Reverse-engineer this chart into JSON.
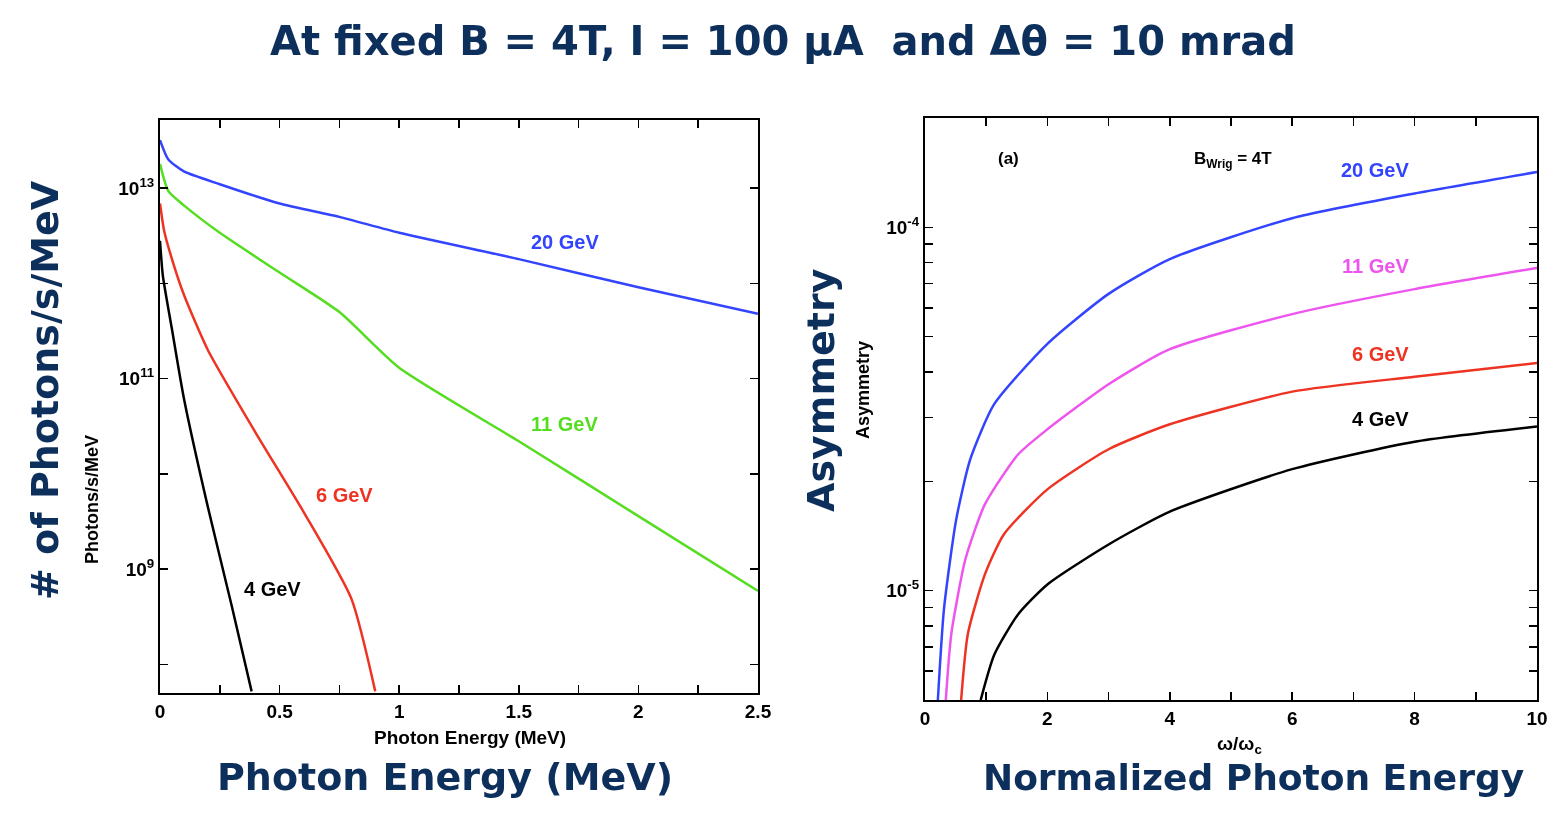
{
  "chart_data": [
    {
      "type": "line",
      "title": "At fixed B = 4T, I = 100 μA  and Δθ = 10 mrad",
      "xlabel": "Photon Energy (MeV)",
      "ylabel": "Photons/s/MeV",
      "log": "y",
      "annotations": [
        "# of Photons/s/MeV",
        "Photon Energy (MeV)"
      ],
      "xlim": [
        0,
        2.5
      ],
      "xticks": [
        0,
        {
          "value": 0.25,
          "label": null
        },
        0.5,
        {
          "value": 0.75,
          "label": null
        },
        1,
        {
          "value": 1.25,
          "label": null
        },
        1.5,
        {
          "value": 1.75,
          "label": null
        },
        2,
        {
          "value": 2.25,
          "label": null
        },
        2.5
      ],
      "ylim": [
        50000000.0,
        52000000000000.0
      ],
      "yticks": [
        {
          "value": 100000000.0,
          "label": null
        },
        {
          "value": 1000000000.0,
          "label": "10$^{9}$"
        },
        {
          "value": 10000000000.0,
          "label": null
        },
        {
          "value": 100000000000.0,
          "label": "10$^{11}$"
        },
        {
          "value": 1000000000000.0,
          "label": null
        },
        {
          "value": 10000000000000.0,
          "label": "10$^{13}$"
        }
      ],
      "series": [
        {
          "name": "20 GeV",
          "color": "#3344ff",
          "x": [
            0,
            0.035,
            0.1,
            0.25,
            0.5,
            0.75,
            1,
            1.5,
            2,
            2.5
          ],
          "values": [
            32000000000000.0,
            20000000000000.0,
            15000000000000.0,
            11000000000000.0,
            6900000000000.0,
            5000000000000.0,
            3400000000000.0,
            1800000000000.0,
            910000000000.0,
            480000000000.0
          ]
        },
        {
          "name": "11 GeV",
          "color": "#55dd22",
          "x": [
            0,
            0.035,
            0.1,
            0.25,
            0.5,
            0.75,
            1,
            1.5,
            2,
            2.5
          ],
          "values": [
            18000000000000.0,
            9300000000000.0,
            6600000000000.0,
            3400000000000.0,
            1300000000000.0,
            500000000000.0,
            130000000000.0,
            22000000000.0,
            3600000000.0,
            590000000.0
          ]
        },
        {
          "name": "6 GeV",
          "color": "#ee3322",
          "x": [
            0,
            0.017,
            0.05,
            0.1,
            0.2,
            0.4,
            0.6,
            0.8,
            0.9
          ],
          "values": [
            6900000000000.0,
            3600000000000.0,
            1800000000000.0,
            760000000000.0,
            200000000000.0,
            27000000000.0,
            4000000000.0,
            490000000.0,
            52000000.0
          ]
        },
        {
          "name": "4 GeV",
          "color": "#000000",
          "x": [
            0,
            0.012,
            0.05,
            0.1,
            0.2,
            0.3,
            0.383
          ],
          "values": [
            2800000000000.0,
            1200000000000.0,
            330000000000.0,
            62000000000.0,
            4500000000.0,
            410000000.0,
            52000000.0
          ]
        }
      ]
    },
    {
      "type": "line",
      "xlabel": "ω/ω$_{c}$",
      "ylabel": "Asymmetry",
      "log": "y",
      "annotations": [
        "(a)",
        "B$_{Wrig}$ = 4T",
        "Asymmetry",
        "Normalized Photon Energy"
      ],
      "xlim": [
        0,
        10
      ],
      "xticks": [
        0,
        {
          "value": 1,
          "label": null
        },
        2,
        {
          "value": 3,
          "label": null
        },
        4,
        {
          "value": 5,
          "label": null
        },
        6,
        {
          "value": 7,
          "label": null
        },
        8,
        {
          "value": 9,
          "label": null
        },
        10
      ],
      "ylim": [
        5e-06,
        0.0002
      ],
      "yticks": [
        {
          "value": 6e-06,
          "label": null
        },
        {
          "value": 7e-06,
          "label": null
        },
        {
          "value": 8e-06,
          "label": null
        },
        {
          "value": 9e-06,
          "label": null
        },
        {
          "value": 1e-05,
          "label": "10$^{-5}$"
        },
        {
          "value": 2e-05,
          "label": null
        },
        {
          "value": 3e-05,
          "label": null
        },
        {
          "value": 4e-05,
          "label": null
        },
        {
          "value": 5e-05,
          "label": null
        },
        {
          "value": 6e-05,
          "label": null
        },
        {
          "value": 7e-05,
          "label": null
        },
        {
          "value": 8e-05,
          "label": null
        },
        {
          "value": 9e-05,
          "label": null
        },
        {
          "value": 0.0001,
          "label": "10$^{-4}$"
        }
      ],
      "series": [
        {
          "name": "20 GeV",
          "color": "#3344ff",
          "x": [
            0.21,
            0.31,
            0.51,
            0.74,
            1.13,
            2,
            3,
            4,
            6,
            8,
            10
          ],
          "values": [
            5e-06,
            8.9e-06,
            1.57e-05,
            2.3e-05,
            3.26e-05,
            4.78e-05,
            6.56e-05,
            8.18e-05,
            0.000106,
            0.000124,
            0.000142
          ]
        },
        {
          "name": "11 GeV",
          "color": "#ee55ee",
          "x": [
            0.34,
            0.43,
            0.66,
            0.98,
            1.52,
            2,
            3,
            4,
            6,
            8,
            10
          ],
          "values": [
            5e-06,
            7.6e-06,
            1.22e-05,
            1.73e-05,
            2.37e-05,
            2.78e-05,
            3.7e-05,
            4.62e-05,
            5.77e-05,
            6.76e-05,
            7.73e-05
          ]
        },
        {
          "name": "6 GeV",
          "color": "#ee3322",
          "x": [
            0.59,
            0.7,
            0.98,
            1.29,
            2,
            3,
            4,
            6,
            8,
            10
          ],
          "values": [
            5e-06,
            7.6e-06,
            1.11e-05,
            1.43e-05,
            1.9e-05,
            2.45e-05,
            2.87e-05,
            3.53e-05,
            3.88e-05,
            4.23e-05
          ]
        },
        {
          "name": "4 GeV",
          "color": "#000000",
          "x": [
            0.91,
            1.13,
            1.52,
            2,
            3,
            4,
            6,
            8,
            10
          ],
          "values": [
            5e-06,
            6.65e-06,
            8.6e-06,
            1.04e-05,
            1.34e-05,
            1.65e-05,
            2.16e-05,
            2.57e-05,
            2.83e-05
          ]
        }
      ]
    }
  ]
}
